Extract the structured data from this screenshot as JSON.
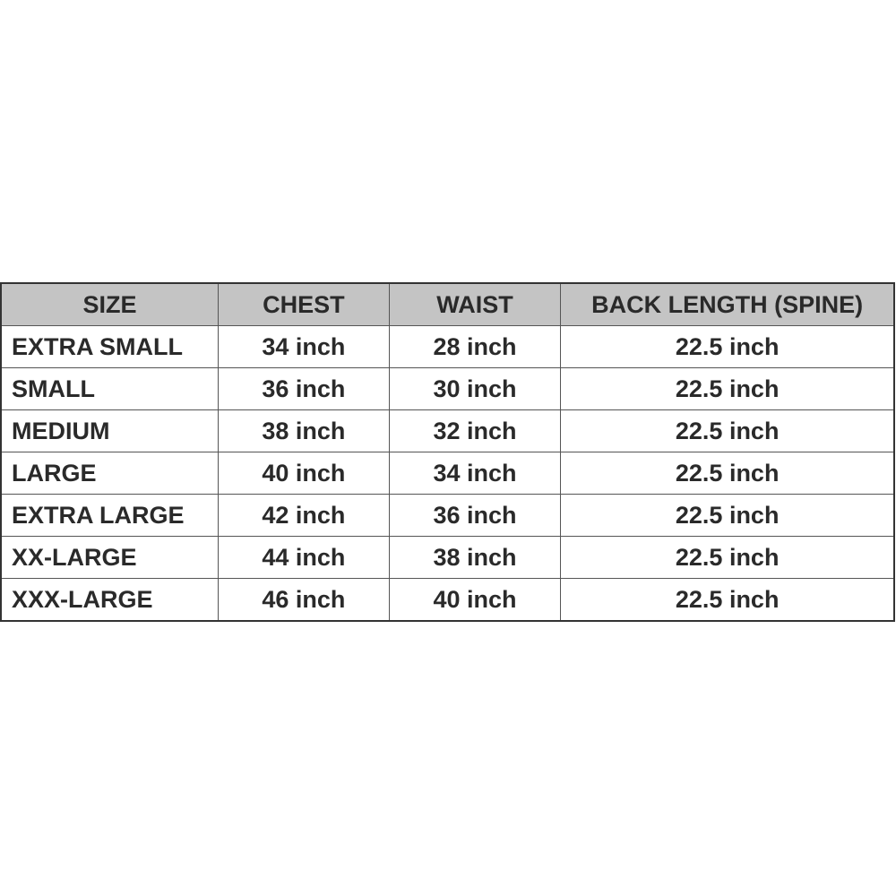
{
  "table": {
    "headers": [
      "SIZE",
      "CHEST",
      "WAIST",
      "BACK LENGTH (SPINE)"
    ],
    "rows": [
      [
        "EXTRA SMALL",
        "34 inch",
        "28 inch",
        "22.5 inch"
      ],
      [
        "SMALL",
        "36 inch",
        "30 inch",
        "22.5 inch"
      ],
      [
        "MEDIUM",
        "38 inch",
        "32 inch",
        "22.5 inch"
      ],
      [
        "LARGE",
        "40 inch",
        "34 inch",
        "22.5 inch"
      ],
      [
        "EXTRA LARGE",
        "42 inch",
        "36 inch",
        "22.5 inch"
      ],
      [
        "XX-LARGE",
        "44 inch",
        "38 inch",
        "22.5 inch"
      ],
      [
        "XXX-LARGE",
        "46 inch",
        "40 inch",
        "22.5 inch"
      ]
    ],
    "header_bg": "#c4c4c4",
    "text_color": "#2a2a2a"
  }
}
